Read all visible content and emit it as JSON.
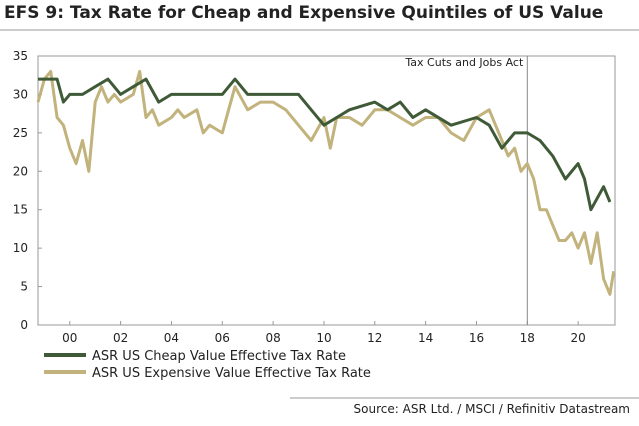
{
  "chart_data": {
    "type": "line",
    "title": "EFS 9: Tax Rate for Cheap and Expensive Quintiles of US Value",
    "source": "Source: ASR Ltd. / MSCI / Refinitiv Datastream",
    "vline": {
      "x": 2018,
      "label": "Tax Cuts and Jobs Act"
    },
    "xlim": [
      1998.75,
      2021.45
    ],
    "xticks": [
      {
        "value": 2000,
        "label": "00"
      },
      {
        "value": 2002,
        "label": "02"
      },
      {
        "value": 2004,
        "label": "04"
      },
      {
        "value": 2006,
        "label": "06"
      },
      {
        "value": 2008,
        "label": "08"
      },
      {
        "value": 2010,
        "label": "10"
      },
      {
        "value": 2012,
        "label": "12"
      },
      {
        "value": 2014,
        "label": "14"
      },
      {
        "value": 2016,
        "label": "16"
      },
      {
        "value": 2018,
        "label": "18"
      },
      {
        "value": 2020,
        "label": "20"
      }
    ],
    "ylim": [
      0,
      35
    ],
    "yticks": [
      0,
      5,
      10,
      15,
      20,
      25,
      30,
      35
    ],
    "grid": false,
    "series": [
      {
        "name": "ASR US Cheap Value Effective Tax Rate",
        "color": "#3f5a37",
        "x": [
          1998.75,
          1999.5,
          1999.75,
          2000,
          2000.5,
          2001,
          2001.5,
          2002,
          2002.5,
          2003,
          2003.5,
          2004,
          2005,
          2006,
          2006.5,
          2007,
          2008,
          2009,
          2009.5,
          2010,
          2010.5,
          2011,
          2012,
          2012.5,
          2013,
          2013.5,
          2014,
          2015,
          2016,
          2016.5,
          2017,
          2017.5,
          2018,
          2018.5,
          2019,
          2019.5,
          2020,
          2020.25,
          2020.5,
          2021,
          2021.25
        ],
        "values": [
          32,
          32,
          29,
          30,
          30,
          31,
          32,
          30,
          31,
          32,
          29,
          30,
          30,
          30,
          32,
          30,
          30,
          30,
          28,
          26,
          27,
          28,
          29,
          28,
          29,
          27,
          28,
          26,
          27,
          26,
          23,
          25,
          25,
          24,
          22,
          19,
          21,
          19,
          15,
          18,
          16
        ]
      },
      {
        "name": "ASR US Expensive Value Effective Tax Rate",
        "color": "#c2b27c",
        "x": [
          1998.75,
          1999,
          1999.25,
          1999.5,
          1999.75,
          2000,
          2000.25,
          2000.5,
          2000.75,
          2001,
          2001.25,
          2001.5,
          2001.75,
          2002,
          2002.5,
          2002.75,
          2003,
          2003.25,
          2003.5,
          2004,
          2004.25,
          2004.5,
          2005,
          2005.25,
          2005.5,
          2006,
          2006.25,
          2006.5,
          2007,
          2007.5,
          2008,
          2008.5,
          2009,
          2009.5,
          2010,
          2010.25,
          2010.5,
          2011,
          2011.5,
          2012,
          2012.5,
          2013,
          2013.5,
          2014,
          2014.5,
          2015,
          2015.5,
          2016,
          2016.5,
          2017,
          2017.25,
          2017.5,
          2017.75,
          2018,
          2018.25,
          2018.5,
          2018.75,
          2019,
          2019.25,
          2019.5,
          2019.75,
          2020,
          2020.25,
          2020.5,
          2020.75,
          2021,
          2021.25,
          2021.4
        ],
        "values": [
          29,
          32,
          33,
          27,
          26,
          23,
          21,
          24,
          20,
          29,
          31,
          29,
          30,
          29,
          30,
          33,
          27,
          28,
          26,
          27,
          28,
          27,
          28,
          25,
          26,
          25,
          28,
          31,
          28,
          29,
          29,
          28,
          26,
          24,
          27,
          23,
          27,
          27,
          26,
          28,
          28,
          27,
          26,
          27,
          27,
          25,
          24,
          27,
          28,
          24,
          22,
          23,
          20,
          21,
          19,
          15,
          15,
          13,
          11,
          11,
          12,
          10,
          12,
          8,
          12,
          6,
          4,
          7
        ]
      }
    ]
  }
}
